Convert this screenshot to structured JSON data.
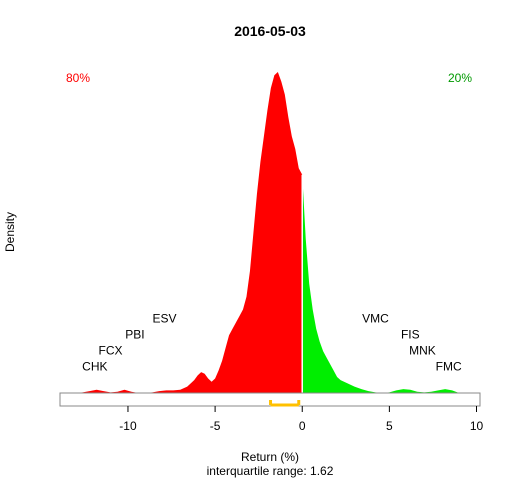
{
  "chart_data": {
    "type": "area",
    "title": "2016-05-03",
    "xlabel": "Return (%)",
    "ylabel": "Density",
    "subtitle": "interquartile range: 1.62",
    "xlim": [
      -13.9,
      10.2
    ],
    "ylim": [
      0,
      1
    ],
    "x_ticks": [
      -10,
      -5,
      0,
      5,
      10
    ],
    "grid": false,
    "split_at": 0,
    "negative_share_label": "80%",
    "positive_share_label": "20%",
    "negative_color": "#ff0000",
    "positive_color": "#00ee00",
    "iqr_color": "#ffc000",
    "iqr": [
      -1.82,
      -0.2
    ],
    "density": {
      "x": [
        -13.0,
        -12.6,
        -12.2,
        -11.8,
        -11.4,
        -11.0,
        -10.6,
        -10.2,
        -9.8,
        -9.4,
        -9.0,
        -8.6,
        -8.2,
        -7.8,
        -7.4,
        -7.0,
        -6.6,
        -6.2,
        -6.0,
        -5.8,
        -5.6,
        -5.4,
        -5.2,
        -5.0,
        -4.8,
        -4.6,
        -4.4,
        -4.2,
        -4.0,
        -3.8,
        -3.6,
        -3.4,
        -3.2,
        -3.0,
        -2.8,
        -2.6,
        -2.4,
        -2.2,
        -2.0,
        -1.8,
        -1.6,
        -1.4,
        -1.2,
        -1.0,
        -0.8,
        -0.6,
        -0.4,
        -0.2,
        0.0,
        0.2,
        0.4,
        0.6,
        0.8,
        1.0,
        1.2,
        1.4,
        1.6,
        1.8,
        2.0,
        2.2,
        2.4,
        2.6,
        3.0,
        3.4,
        3.8,
        4.2,
        4.6,
        5.0,
        5.4,
        5.8,
        6.2,
        6.6,
        7.0,
        7.4,
        7.8,
        8.2,
        8.6,
        9.0
      ],
      "y": [
        0.0,
        0.002,
        0.006,
        0.01,
        0.006,
        0.002,
        0.004,
        0.01,
        0.004,
        0.0,
        0.0,
        0.002,
        0.006,
        0.008,
        0.008,
        0.01,
        0.02,
        0.04,
        0.055,
        0.065,
        0.06,
        0.045,
        0.035,
        0.045,
        0.07,
        0.1,
        0.14,
        0.18,
        0.2,
        0.22,
        0.24,
        0.26,
        0.3,
        0.38,
        0.5,
        0.62,
        0.72,
        0.8,
        0.88,
        0.95,
        0.99,
        1.0,
        0.97,
        0.93,
        0.86,
        0.8,
        0.76,
        0.7,
        0.68,
        0.48,
        0.34,
        0.26,
        0.2,
        0.16,
        0.13,
        0.11,
        0.09,
        0.07,
        0.05,
        0.04,
        0.035,
        0.03,
        0.02,
        0.012,
        0.006,
        0.002,
        0.0,
        0.002,
        0.008,
        0.012,
        0.01,
        0.004,
        0.002,
        0.004,
        0.008,
        0.012,
        0.008,
        0.0
      ]
    },
    "annotations": [
      {
        "text": "CHK",
        "x": -11.9,
        "y": 0.07
      },
      {
        "text": "FCX",
        "x": -11.0,
        "y": 0.12
      },
      {
        "text": "PBI",
        "x": -9.6,
        "y": 0.17
      },
      {
        "text": "ESV",
        "x": -7.9,
        "y": 0.22
      },
      {
        "text": "VMC",
        "x": 4.2,
        "y": 0.22
      },
      {
        "text": "FIS",
        "x": 6.2,
        "y": 0.17
      },
      {
        "text": "MNK",
        "x": 6.9,
        "y": 0.12
      },
      {
        "text": "FMC",
        "x": 8.4,
        "y": 0.07
      }
    ]
  }
}
